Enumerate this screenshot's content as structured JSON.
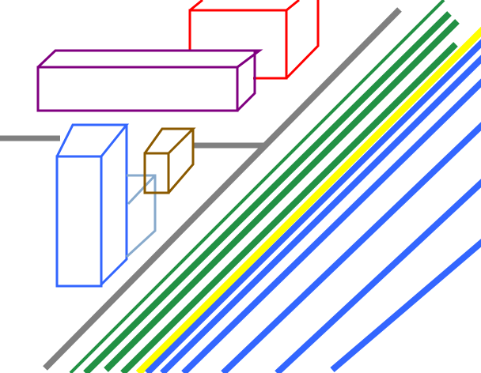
{
  "colors": {
    "road_edge": "#808080",
    "lane_green": "#229144",
    "lane_yellow": "#ffff00",
    "lane_blue": "#3366ff",
    "box_red": "#ff0000",
    "box_purple": "#800080",
    "box_blue": "#3366ff",
    "box_lightblue": "#88aacc",
    "box_brown": "#8b5a00"
  }
}
